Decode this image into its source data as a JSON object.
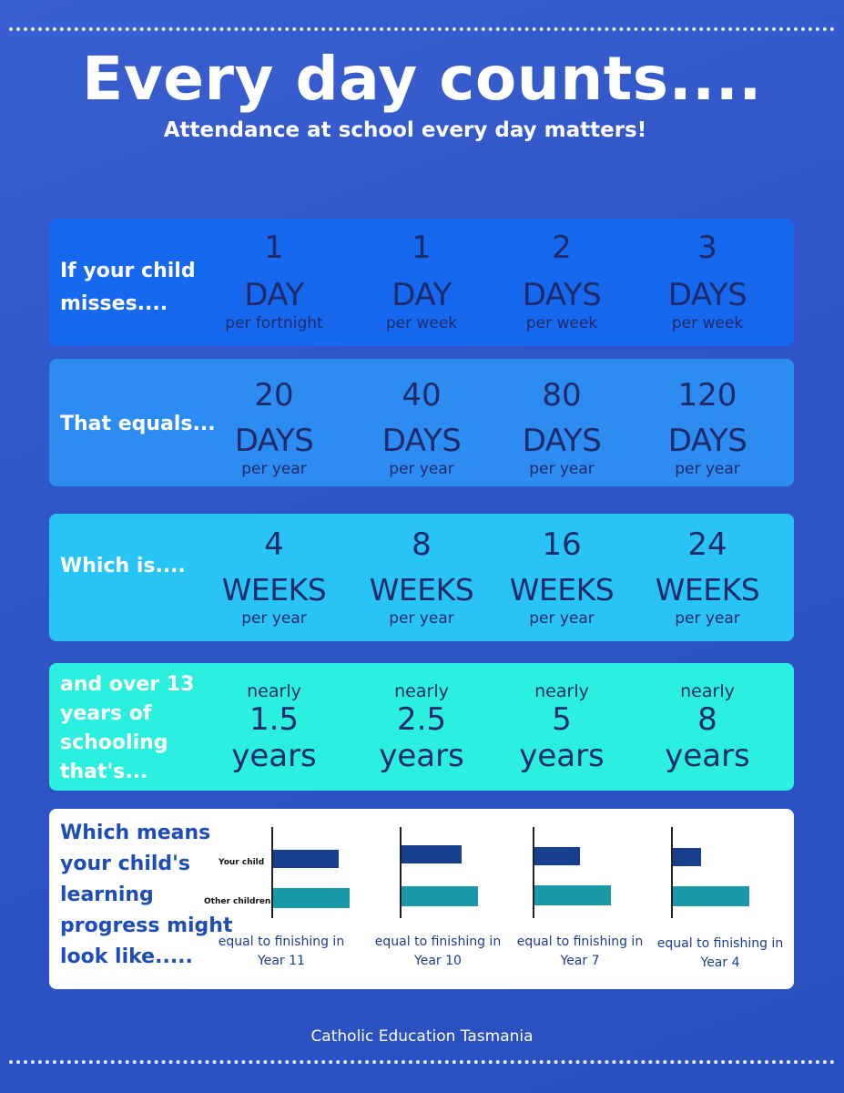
{
  "title": "Every day counts....",
  "subtitle": "Attendance at school every day matters!",
  "rows": [
    {
      "label_lines": [
        "If your child",
        "misses...."
      ],
      "cols": [
        {
          "num": "1",
          "unit": "DAY",
          "sub": "per fortnight"
        },
        {
          "num": "1",
          "unit": "DAY",
          "sub": "per week"
        },
        {
          "num": "2",
          "unit": "DAYS",
          "sub": "per week"
        },
        {
          "num": "3",
          "unit": "DAYS",
          "sub": "per week"
        }
      ]
    },
    {
      "label_lines": [
        "That equals..."
      ],
      "cols": [
        {
          "num": "20",
          "unit": "DAYS",
          "sub": "per year"
        },
        {
          "num": "40",
          "unit": "DAYS",
          "sub": "per year"
        },
        {
          "num": "80",
          "unit": "DAYS",
          "sub": "per year"
        },
        {
          "num": "120",
          "unit": "DAYS",
          "sub": "per year"
        }
      ]
    },
    {
      "label_lines": [
        "Which is...."
      ],
      "cols": [
        {
          "num": "4",
          "unit": "WEEKS",
          "sub": "per year"
        },
        {
          "num": "8",
          "unit": "WEEKS",
          "sub": "per year"
        },
        {
          "num": "16",
          "unit": "WEEKS",
          "sub": "per year"
        },
        {
          "num": "24",
          "unit": "WEEKS",
          "sub": "per year"
        }
      ]
    }
  ],
  "schooling": {
    "label_lines": [
      "and over 13",
      "years of",
      "schooling",
      "that's..."
    ],
    "cols": [
      {
        "pre": "nearly",
        "num": "1.5",
        "unit": "years"
      },
      {
        "pre": "nearly",
        "num": "2.5",
        "unit": "years"
      },
      {
        "pre": "nearly",
        "num": "5",
        "unit": "years"
      },
      {
        "pre": "nearly",
        "num": "8",
        "unit": "years"
      }
    ]
  },
  "progress": {
    "label_lines": [
      "Which means",
      "your child's",
      "learning",
      "progress might",
      "look like....."
    ],
    "legend": {
      "your_child": "Your child",
      "other_children": "Other children"
    },
    "charts": [
      {
        "your_child": 0.86,
        "other": 1.0,
        "caption_lines": [
          "equal to finishing in",
          "Year 11"
        ]
      },
      {
        "your_child": 0.79,
        "other": 1.0,
        "caption_lines": [
          "equal to finishing in",
          "Year 10"
        ]
      },
      {
        "your_child": 0.6,
        "other": 1.0,
        "caption_lines": [
          "equal to finishing in",
          "Year 7"
        ]
      },
      {
        "your_child": 0.37,
        "other": 1.0,
        "caption_lines": [
          "equal to finishing in",
          "Year 4"
        ]
      }
    ],
    "colors": {
      "your_child": "#163f8e",
      "other_children": "#1a9aa8"
    }
  },
  "footer": "Catholic Education Tasmania"
}
